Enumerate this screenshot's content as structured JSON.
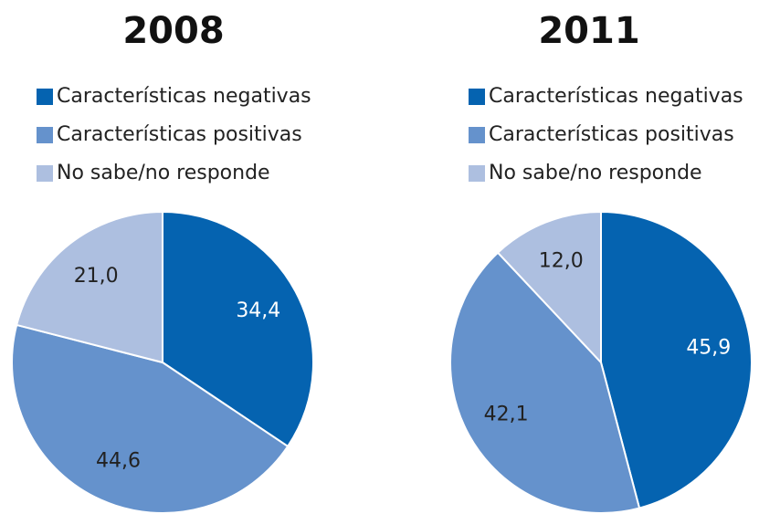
{
  "chart_data": [
    {
      "type": "pie",
      "title": "2008",
      "categories": [
        "Características negativas",
        "Características positivas",
        "No sabe/no responde"
      ],
      "values": [
        34.4,
        44.6,
        21.0
      ],
      "value_labels": [
        "34,4",
        "44,6",
        "21,0"
      ],
      "colors": [
        "#0563b0",
        "#6592cc",
        "#adbfe0"
      ],
      "label_colors": [
        "#ffffff",
        "#222222",
        "#222222"
      ]
    },
    {
      "type": "pie",
      "title": "2011",
      "categories": [
        "Características negativas",
        "Características positivas",
        "No sabe/no responde"
      ],
      "values": [
        45.9,
        42.1,
        12.0
      ],
      "value_labels": [
        "45,9",
        "42,1",
        "12,0"
      ],
      "colors": [
        "#0563b0",
        "#6592cc",
        "#adbfe0"
      ],
      "label_colors": [
        "#ffffff",
        "#222222",
        "#222222"
      ]
    }
  ]
}
